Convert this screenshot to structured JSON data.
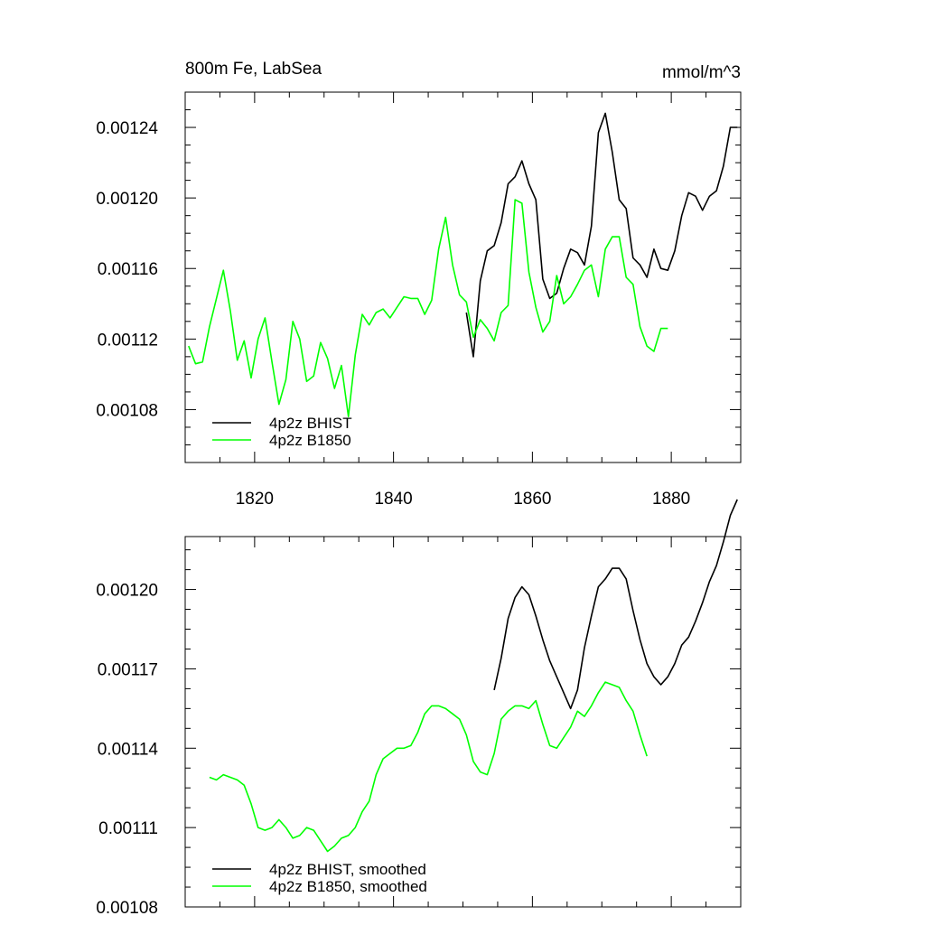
{
  "chart_data": [
    {
      "type": "line",
      "title": "800m Fe, LabSea",
      "units": "mmol/m^3",
      "xlim": [
        1810,
        1890
      ],
      "ylim": [
        0.00105,
        0.00126
      ],
      "x_ticks": [
        1820,
        1840,
        1860,
        1880
      ],
      "x_tick_labels": [
        "1820",
        "1840",
        "1860",
        "1880"
      ],
      "y_ticks": [
        0.00108,
        0.00112,
        0.00116,
        0.0012,
        0.00124
      ],
      "y_tick_labels": [
        "0.00108",
        "0.00112",
        "0.00116",
        "0.00120",
        "0.00124"
      ],
      "legend_position": "bottom-left",
      "series": [
        {
          "name": "4p2z BHIST",
          "color": "#000000",
          "x": [
            1850.5,
            1851.5,
            1852.5,
            1853.5,
            1854.5,
            1855.5,
            1856.5,
            1857.5,
            1858.5,
            1859.5,
            1860.5,
            1861.5,
            1862.5,
            1863.5,
            1864.5,
            1865.5,
            1866.5,
            1867.5,
            1868.5,
            1869.5,
            1870.5,
            1871.5,
            1872.5,
            1873.5,
            1874.5,
            1875.5,
            1876.5,
            1877.5,
            1878.5,
            1879.5,
            1880.5,
            1881.5,
            1882.5,
            1883.5,
            1884.5,
            1885.5,
            1886.5,
            1887.5,
            1888.5,
            1889.5
          ],
          "values": [
            0.001135,
            0.00111,
            0.001153,
            0.00117,
            0.001173,
            0.001186,
            0.001208,
            0.001212,
            0.001221,
            0.001208,
            0.001199,
            0.001154,
            0.001143,
            0.001146,
            0.00116,
            0.001171,
            0.001169,
            0.001162,
            0.001184,
            0.001237,
            0.001248,
            0.001226,
            0.001199,
            0.001194,
            0.001166,
            0.001162,
            0.001155,
            0.001171,
            0.00116,
            0.001159,
            0.00117,
            0.00119,
            0.001203,
            0.001201,
            0.001193,
            0.001201,
            0.001204,
            0.001218,
            0.00124,
            0.00124
          ]
        },
        {
          "name": "4p2z B1850",
          "color": "#00ff00",
          "x": [
            1810.5,
            1811.5,
            1812.5,
            1813.5,
            1814.5,
            1815.5,
            1816.5,
            1817.5,
            1818.5,
            1819.5,
            1820.5,
            1821.5,
            1822.5,
            1823.5,
            1824.5,
            1825.5,
            1826.5,
            1827.5,
            1828.5,
            1829.5,
            1830.5,
            1831.5,
            1832.5,
            1833.5,
            1834.5,
            1835.5,
            1836.5,
            1837.5,
            1838.5,
            1839.5,
            1840.5,
            1841.5,
            1842.5,
            1843.5,
            1844.5,
            1845.5,
            1846.5,
            1847.5,
            1848.5,
            1849.5,
            1850.5,
            1851.5,
            1852.5,
            1853.5,
            1854.5,
            1855.5,
            1856.5,
            1857.5,
            1858.5,
            1859.5,
            1860.5,
            1861.5,
            1862.5,
            1863.5,
            1864.5,
            1865.5,
            1866.5,
            1867.5,
            1868.5,
            1869.5,
            1870.5,
            1871.5,
            1872.5,
            1873.5,
            1874.5,
            1875.5,
            1876.5,
            1877.5,
            1878.5,
            1879.5
          ],
          "values": [
            0.001116,
            0.001106,
            0.001107,
            0.001127,
            0.001143,
            0.001159,
            0.001136,
            0.001108,
            0.001119,
            0.001098,
            0.00112,
            0.001132,
            0.001107,
            0.001083,
            0.001097,
            0.00113,
            0.00112,
            0.001096,
            0.001099,
            0.001118,
            0.001109,
            0.001092,
            0.001105,
            0.001076,
            0.001111,
            0.001134,
            0.001128,
            0.001135,
            0.001137,
            0.001132,
            0.001138,
            0.001144,
            0.001143,
            0.001143,
            0.001134,
            0.001142,
            0.001171,
            0.001189,
            0.001162,
            0.001145,
            0.001141,
            0.001121,
            0.001131,
            0.001126,
            0.001119,
            0.001135,
            0.001139,
            0.001199,
            0.001197,
            0.001158,
            0.001138,
            0.001124,
            0.00113,
            0.001156,
            0.00114,
            0.001144,
            0.001151,
            0.001159,
            0.001162,
            0.001144,
            0.001171,
            0.001178,
            0.001178,
            0.001155,
            0.001151,
            0.001127,
            0.001116,
            0.001113,
            0.001126,
            0.001126
          ]
        }
      ]
    },
    {
      "type": "line",
      "xlim": [
        1810,
        1890
      ],
      "ylim": [
        0.00108,
        0.00122
      ],
      "x_ticks": [
        1820,
        1840,
        1860,
        1880
      ],
      "y_ticks": [
        0.00108,
        0.00111,
        0.00114,
        0.00117,
        0.0012
      ],
      "y_tick_labels": [
        "0.00108",
        "0.00111",
        "0.00114",
        "0.00117",
        "0.00120"
      ],
      "legend_position": "bottom-left",
      "series": [
        {
          "name": "4p2z BHIST, smoothed",
          "color": "#000000",
          "x": [
            1854.5,
            1855.5,
            1856.5,
            1857.5,
            1858.5,
            1859.5,
            1860.5,
            1861.5,
            1862.5,
            1863.5,
            1864.5,
            1865.5,
            1866.5,
            1867.5,
            1868.5,
            1869.5,
            1870.5,
            1871.5,
            1872.5,
            1873.5,
            1874.5,
            1875.5,
            1876.5,
            1877.5,
            1878.5,
            1879.5,
            1880.5,
            1881.5,
            1882.5,
            1883.5,
            1884.5,
            1885.5,
            1886.5,
            1887.5,
            1888.5,
            1889.5
          ],
          "values": [
            0.001162,
            0.001174,
            0.001189,
            0.001197,
            0.001201,
            0.001198,
            0.00119,
            0.001181,
            0.001173,
            0.001167,
            0.001161,
            0.001155,
            0.001162,
            0.001178,
            0.00119,
            0.001201,
            0.001204,
            0.001208,
            0.001208,
            0.001204,
            0.001192,
            0.001181,
            0.001172,
            0.001167,
            0.001164,
            0.001167,
            0.001172,
            0.001179,
            0.001182,
            0.001188,
            0.001195,
            0.001203,
            0.001209,
            0.001218,
            0.001228,
            0.001234
          ]
        },
        {
          "name": "4p2z B1850, smoothed",
          "color": "#00ff00",
          "x": [
            1813.5,
            1814.5,
            1815.5,
            1816.5,
            1817.5,
            1818.5,
            1819.5,
            1820.5,
            1821.5,
            1822.5,
            1823.5,
            1824.5,
            1825.5,
            1826.5,
            1827.5,
            1828.5,
            1829.5,
            1830.5,
            1831.5,
            1832.5,
            1833.5,
            1834.5,
            1835.5,
            1836.5,
            1837.5,
            1838.5,
            1839.5,
            1840.5,
            1841.5,
            1842.5,
            1843.5,
            1844.5,
            1845.5,
            1846.5,
            1847.5,
            1848.5,
            1849.5,
            1850.5,
            1851.5,
            1852.5,
            1853.5,
            1854.5,
            1855.5,
            1856.5,
            1857.5,
            1858.5,
            1859.5,
            1860.5,
            1861.5,
            1862.5,
            1863.5,
            1864.5,
            1865.5,
            1866.5,
            1867.5,
            1868.5,
            1869.5,
            1870.5,
            1871.5,
            1872.5,
            1873.5,
            1874.5,
            1875.5,
            1876.5
          ],
          "values": [
            0.001129,
            0.001128,
            0.00113,
            0.001129,
            0.001128,
            0.001126,
            0.001119,
            0.00111,
            0.001109,
            0.00111,
            0.001113,
            0.00111,
            0.001106,
            0.001107,
            0.00111,
            0.001109,
            0.001105,
            0.001101,
            0.001103,
            0.001106,
            0.001107,
            0.00111,
            0.001116,
            0.00112,
            0.00113,
            0.001136,
            0.001138,
            0.00114,
            0.00114,
            0.001141,
            0.001146,
            0.001153,
            0.001156,
            0.001156,
            0.001155,
            0.001153,
            0.001151,
            0.001145,
            0.001135,
            0.001131,
            0.00113,
            0.001138,
            0.001151,
            0.001154,
            0.001156,
            0.001156,
            0.001155,
            0.001158,
            0.001149,
            0.001141,
            0.00114,
            0.001144,
            0.001148,
            0.001154,
            0.001152,
            0.001156,
            0.001161,
            0.001165,
            0.001164,
            0.001163,
            0.001158,
            0.001154,
            0.001145,
            0.001137
          ]
        }
      ]
    }
  ]
}
